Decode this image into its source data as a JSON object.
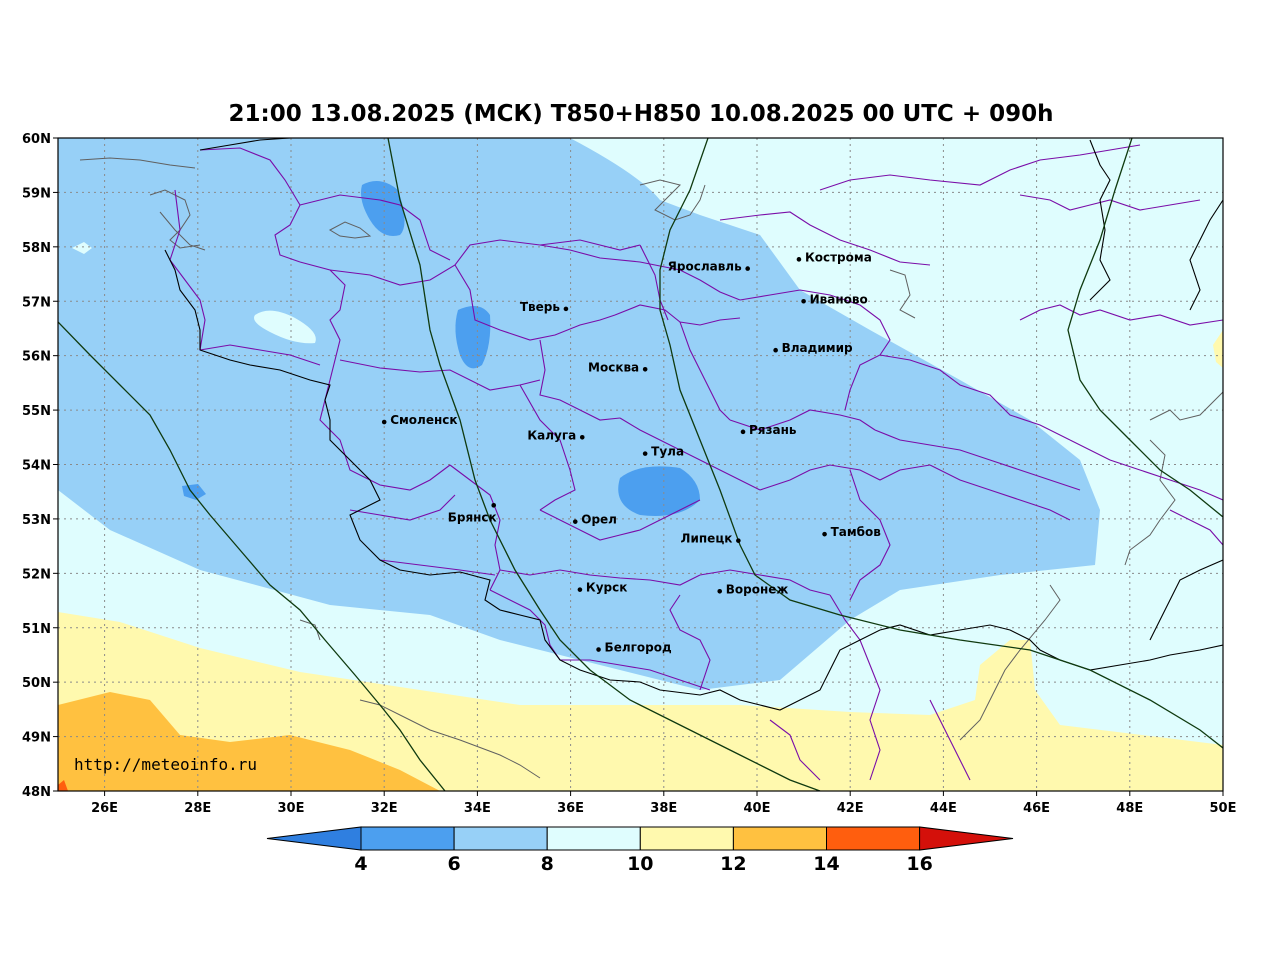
{
  "title": "21:00 13.08.2025 (МСК) T850+H850 10.08.2025 00 UTC + 090h",
  "watermark": "http://meteoinfo.ru",
  "axes": {
    "lon_range": [
      25,
      50
    ],
    "lat_range": [
      48,
      60
    ],
    "x_ticks": [
      {
        "value": 26,
        "label": "26E"
      },
      {
        "value": 28,
        "label": "28E"
      },
      {
        "value": 30,
        "label": "30E"
      },
      {
        "value": 32,
        "label": "32E"
      },
      {
        "value": 34,
        "label": "34E"
      },
      {
        "value": 36,
        "label": "36E"
      },
      {
        "value": 38,
        "label": "38E"
      },
      {
        "value": 40,
        "label": "40E"
      },
      {
        "value": 42,
        "label": "42E"
      },
      {
        "value": 44,
        "label": "44E"
      },
      {
        "value": 46,
        "label": "46E"
      },
      {
        "value": 48,
        "label": "48E"
      },
      {
        "value": 50,
        "label": "50E"
      }
    ],
    "y_ticks": [
      {
        "value": 48,
        "label": "48N"
      },
      {
        "value": 49,
        "label": "49N"
      },
      {
        "value": 50,
        "label": "50N"
      },
      {
        "value": 51,
        "label": "51N"
      },
      {
        "value": 52,
        "label": "52N"
      },
      {
        "value": 53,
        "label": "53N"
      },
      {
        "value": 54,
        "label": "54N"
      },
      {
        "value": 55,
        "label": "55N"
      },
      {
        "value": 56,
        "label": "56N"
      },
      {
        "value": 57,
        "label": "57N"
      },
      {
        "value": 58,
        "label": "58N"
      },
      {
        "value": 59,
        "label": "59N"
      },
      {
        "value": 60,
        "label": "60N"
      }
    ]
  },
  "cities": [
    {
      "name": "Кострома",
      "lon": 40.9,
      "lat": 57.77
    },
    {
      "name": "Ярославль",
      "lon": 39.8,
      "lat": 57.6
    },
    {
      "name": "Иваново",
      "lon": 41.0,
      "lat": 57.0
    },
    {
      "name": "Тверь",
      "lon": 35.9,
      "lat": 56.86
    },
    {
      "name": "Владимир",
      "lon": 40.4,
      "lat": 56.1
    },
    {
      "name": "Москва",
      "lon": 37.6,
      "lat": 55.75
    },
    {
      "name": "Смоленск",
      "lon": 32.0,
      "lat": 54.78
    },
    {
      "name": "Калуга",
      "lon": 36.25,
      "lat": 54.5
    },
    {
      "name": "Рязань",
      "lon": 39.7,
      "lat": 54.6
    },
    {
      "name": "Тула",
      "lon": 37.6,
      "lat": 54.2
    },
    {
      "name": "Брянск",
      "lon": 34.35,
      "lat": 53.25
    },
    {
      "name": "Орел",
      "lon": 36.1,
      "lat": 52.95
    },
    {
      "name": "Тамбов",
      "lon": 41.45,
      "lat": 52.72
    },
    {
      "name": "Липецк",
      "lon": 39.6,
      "lat": 52.6
    },
    {
      "name": "Курск",
      "lon": 36.2,
      "lat": 51.7
    },
    {
      "name": "Воронеж",
      "lon": 39.2,
      "lat": 51.67
    },
    {
      "name": "Белгород",
      "lon": 36.6,
      "lat": 50.6
    }
  ],
  "colorbar": {
    "levels": [
      {
        "label": "4",
        "color": "#4c9fef"
      },
      {
        "label": "6",
        "color": "#97d0f7"
      },
      {
        "label": "8",
        "color": "#dffdfe"
      },
      {
        "label": "10",
        "color": "#fff9ae"
      },
      {
        "label": "12",
        "color": "#ffc140"
      },
      {
        "label": "14",
        "color": "#ff5e0e"
      },
      {
        "label": "16",
        "color": ""
      }
    ],
    "under_color": "#2f7fe0",
    "over_color": "#d4100a"
  },
  "colors": {
    "band_4_6": "#4c9fef",
    "band_6_8": "#97d0f7",
    "band_8_10": "#dffdfe",
    "band_10_12": "#fff9ae",
    "band_12_14": "#ffc140",
    "band_14_16": "#ff5e0e",
    "regions": "#7a0da8",
    "borders": "#000000",
    "geopotential": "#0f3a0f",
    "water": "#606060",
    "grid": "#8a8a8a"
  }
}
